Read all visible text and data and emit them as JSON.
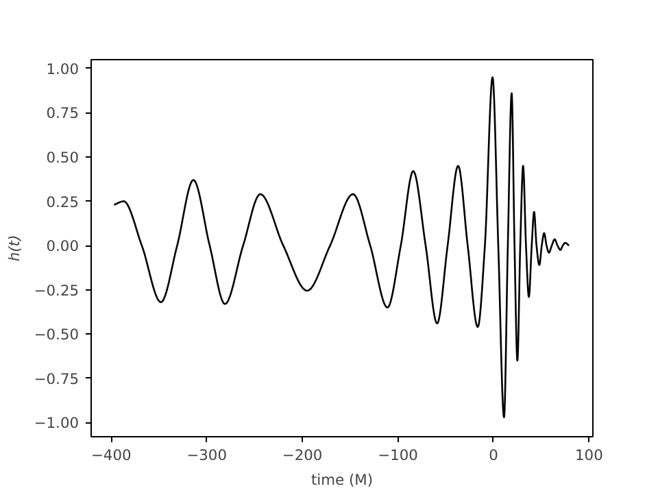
{
  "chart_data": {
    "type": "line",
    "xlabel": "time (M)",
    "ylabel": "h(t)",
    "x": [
      -397,
      -387,
      -368,
      -348,
      -331,
      -314,
      -297,
      -281,
      -262,
      -244,
      -220,
      -195,
      -171,
      -147,
      -129,
      -111,
      -97,
      -84,
      -71,
      -59,
      -48,
      -37,
      -27,
      -16.5,
      -9,
      -1,
      5,
      11,
      15,
      19,
      22,
      25,
      28,
      31,
      34,
      37,
      40,
      42.5,
      45,
      48,
      50.5,
      53,
      55.5,
      58,
      61,
      64,
      67,
      70,
      72.5,
      75,
      79
    ],
    "series": [
      {
        "color": "#000000",
        "values": [
          0.23,
          0.25,
          0,
          -0.32,
          0,
          0.37,
          0,
          -0.33,
          0,
          0.29,
          0,
          -0.255,
          0,
          0.29,
          0,
          -0.35,
          0,
          0.42,
          0,
          -0.44,
          0,
          0.45,
          0,
          -0.46,
          0,
          0.95,
          0,
          -0.97,
          0,
          0.86,
          0,
          -0.65,
          0,
          0.45,
          0,
          -0.29,
          0,
          0.19,
          0,
          -0.11,
          0,
          0.07,
          0,
          -0.04,
          0,
          0.035,
          0,
          -0.025,
          0,
          0.015,
          0
        ]
      }
    ],
    "xlim": [
      -421,
      104
    ],
    "ylim": [
      -1.08,
      1.05
    ],
    "xticks": [
      -400,
      -300,
      -200,
      -100,
      0,
      100
    ],
    "yticks": [
      {
        "value": -1,
        "label": "−1.00"
      },
      {
        "value": -0.75,
        "label": "−0.75"
      },
      {
        "value": -0.5,
        "label": "−0.50"
      },
      {
        "value": -0.25,
        "label": "−0.25"
      },
      {
        "value": 0,
        "label": "0.00"
      },
      {
        "value": 0.25,
        "label": "0.25"
      },
      {
        "value": 0.5,
        "label": "0.50"
      },
      {
        "value": 0.75,
        "label": "0.75"
      },
      {
        "value": 1,
        "label": "1.00"
      }
    ],
    "grid": false
  }
}
